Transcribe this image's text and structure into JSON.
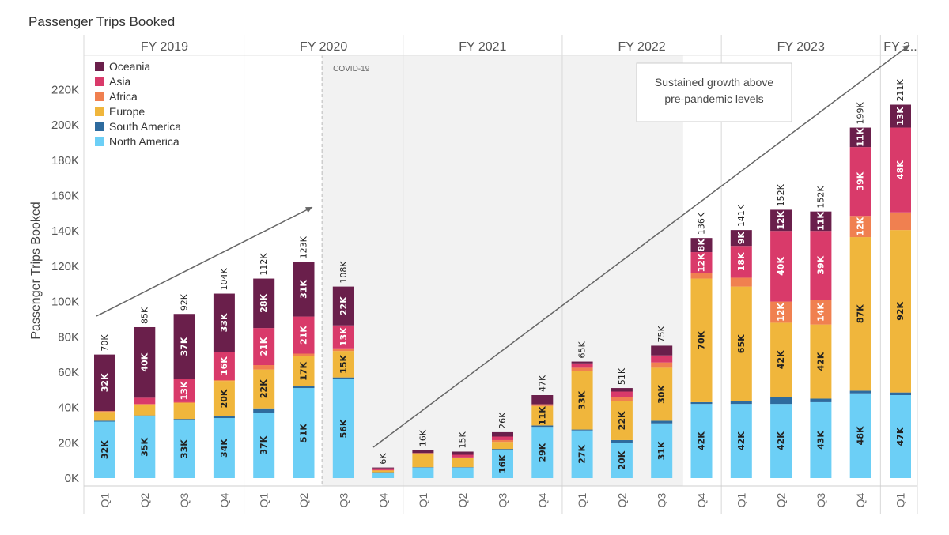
{
  "title": "Passenger Trips Booked",
  "colors": {
    "North America": "#6ccff6",
    "South America": "#2e6b9e",
    "Europe": "#f0b63c",
    "Africa": "#f08050",
    "Asia": "#d93a6a",
    "Oceania": "#6a1f4b"
  },
  "chart_data": {
    "type": "bar",
    "stacked": true,
    "ylabel": "Passenger Trips Booked",
    "ylim": [
      0,
      235000
    ],
    "yticks": [
      "0K",
      "20K",
      "40K",
      "60K",
      "80K",
      "100K",
      "120K",
      "140K",
      "160K",
      "180K",
      "200K",
      "220K"
    ],
    "fiscal_years": [
      {
        "label": "FY 2019",
        "quarters": 4
      },
      {
        "label": "FY 2020",
        "quarters": 4
      },
      {
        "label": "FY 2021",
        "quarters": 4
      },
      {
        "label": "FY 2022",
        "quarters": 4
      },
      {
        "label": "FY 2023",
        "quarters": 4
      },
      {
        "label": "FY 2..",
        "quarters": 1
      }
    ],
    "categories": [
      "Q1",
      "Q2",
      "Q3",
      "Q4",
      "Q1",
      "Q2",
      "Q3",
      "Q4",
      "Q1",
      "Q2",
      "Q3",
      "Q4",
      "Q1",
      "Q2",
      "Q3",
      "Q4",
      "Q1",
      "Q2",
      "Q3",
      "Q4",
      "Q1"
    ],
    "series": [
      {
        "name": "North America",
        "values": [
          32000,
          35000,
          33000,
          34000,
          37000,
          51000,
          56000,
          3000,
          6000,
          6000,
          16000,
          29000,
          27000,
          20000,
          31000,
          42000,
          42000,
          42000,
          43000,
          48000,
          47000
        ],
        "labels": [
          "32K",
          "35K",
          "33K",
          "34K",
          "37K",
          "51K",
          "56K",
          "",
          "",
          "",
          "16K",
          "29K",
          "27K",
          "20K",
          "31K",
          "42K",
          "42K",
          "42K",
          "43K",
          "48K",
          "47K"
        ]
      },
      {
        "name": "South America",
        "values": [
          500,
          500,
          500,
          1000,
          2500,
          1000,
          1000,
          300,
          200,
          200,
          500,
          800,
          500,
          1500,
          1500,
          1000,
          1500,
          4000,
          2000,
          1500,
          1500
        ],
        "labels": [
          "",
          "",
          "",
          "",
          "",
          "",
          "",
          "",
          "",
          "",
          "",
          "",
          "",
          "",
          "",
          "",
          "",
          "",
          "",
          "",
          ""
        ]
      },
      {
        "name": "Europe",
        "values": [
          5000,
          6000,
          9000,
          20000,
          22000,
          17000,
          15000,
          1000,
          7500,
          5000,
          4000,
          11000,
          33000,
          22000,
          30000,
          70000,
          65000,
          42000,
          42000,
          87000,
          92000
        ],
        "labels": [
          "",
          "",
          "",
          "20K",
          "22K",
          "17K",
          "15K",
          "",
          "",
          "",
          "",
          "11K",
          "33K",
          "22K",
          "30K",
          "70K",
          "65K",
          "42K",
          "42K",
          "87K",
          "92K"
        ]
      },
      {
        "name": "Africa",
        "values": [
          500,
          500,
          500,
          500,
          2500,
          1500,
          1500,
          200,
          500,
          500,
          1000,
          1000,
          2000,
          2500,
          3000,
          3000,
          5000,
          12000,
          14000,
          12000,
          10000
        ],
        "labels": [
          "",
          "",
          "",
          "",
          "",
          "",
          "",
          "",
          "",
          "",
          "",
          "",
          "",
          "",
          "",
          "",
          "",
          "12K",
          "14K",
          "12K",
          ""
        ]
      },
      {
        "name": "Asia",
        "values": [
          0,
          3500,
          13000,
          16000,
          21000,
          21000,
          13000,
          1000,
          0,
          1500,
          2000,
          0,
          2500,
          3000,
          4000,
          12000,
          18000,
          40000,
          39000,
          39000,
          48000
        ],
        "labels": [
          "",
          "",
          "13K",
          "16K",
          "21K",
          "21K",
          "13K",
          "",
          "",
          "",
          "",
          "",
          "",
          "",
          "",
          "12K",
          "18K",
          "40K",
          "39K",
          "39K",
          "48K"
        ]
      },
      {
        "name": "Oceania",
        "values": [
          32000,
          40000,
          37000,
          33000,
          28000,
          31000,
          22000,
          500,
          1800,
          1800,
          2500,
          5200,
          1000,
          2000,
          5500,
          8000,
          9000,
          12000,
          11000,
          11000,
          13000
        ],
        "labels": [
          "32K",
          "40K",
          "37K",
          "33K",
          "28K",
          "31K",
          "22K",
          "",
          "",
          "",
          "",
          "",
          "",
          "",
          "",
          "8K",
          "9K",
          "12K",
          "11K",
          "11K",
          "13K"
        ]
      }
    ],
    "totals": [
      "70K",
      "85K",
      "92K",
      "104K",
      "112K",
      "123K",
      "108K",
      "6K",
      "16K",
      "15K",
      "26K",
      "47K",
      "65K",
      "51K",
      "75K",
      "136K",
      "141K",
      "152K",
      "152K",
      "199K",
      "211K"
    ],
    "legend_order": [
      "Oceania",
      "Asia",
      "Africa",
      "Europe",
      "South America",
      "North America"
    ],
    "legend_position": "top-left",
    "annotations": {
      "covid_label": "COVID-19",
      "note_lines": [
        "Sustained growth above",
        "pre-pandemic levels"
      ]
    }
  }
}
